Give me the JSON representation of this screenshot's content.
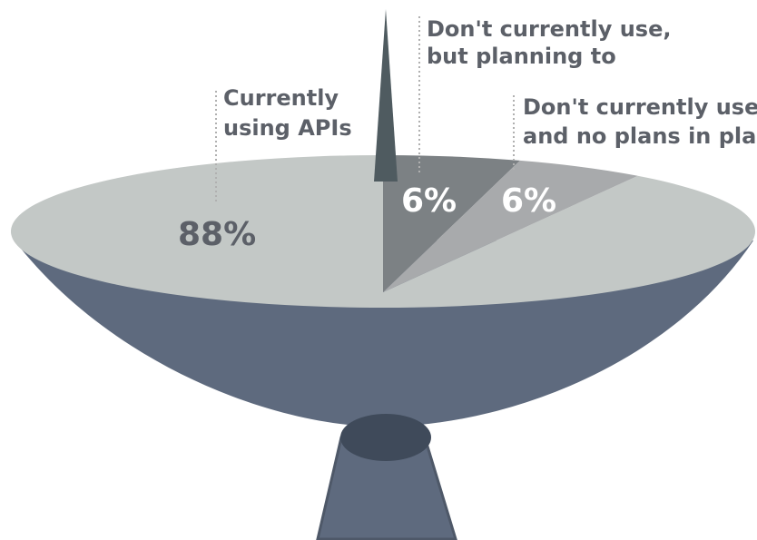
{
  "chart_data": {
    "type": "pie",
    "title": "",
    "slices": [
      {
        "label_lines": [
          "Currently",
          "using APIs"
        ],
        "value": 88,
        "value_label": "88%",
        "color": "#c3c8c6"
      },
      {
        "label_lines": [
          "Don't currently use,",
          "but planning to"
        ],
        "value": 6,
        "value_label": "6%",
        "color": "#7c8184"
      },
      {
        "label_lines": [
          "Don't currently use,",
          "and no plans in place"
        ],
        "value": 6,
        "value_label": "6%",
        "color": "#a8aaac"
      }
    ],
    "colors": {
      "dish": "#5e6a7e",
      "dish_outline": "#4e5868",
      "antenna_spike": "#4f5b60",
      "label_text": "#5c6068",
      "value_text_dark": "#5c6068",
      "value_text_light": "#ffffff",
      "leader_line": "#b0b0b0"
    }
  }
}
